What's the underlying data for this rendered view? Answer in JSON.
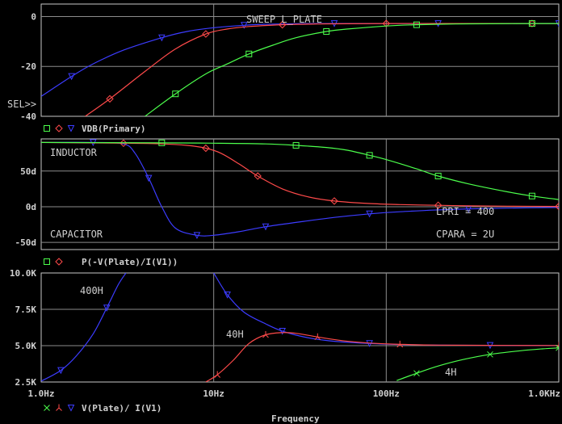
{
  "colors": {
    "bg": "#000000",
    "frame": "#c8c8c8",
    "grid": "#8c8c8c",
    "text": "#d0d0d0",
    "blue": "#3c3cff",
    "red": "#ff4a4a",
    "green": "#4cff4c"
  },
  "chart_data": [
    {
      "type": "line",
      "xscale": "log",
      "xlim": [
        1,
        1000
      ],
      "ylim": [
        -40,
        5
      ],
      "yticks": [
        0,
        -20,
        -40
      ],
      "ytick_labels": [
        "0",
        "-20",
        "-40"
      ],
      "title": "SWEEP L_PLATE",
      "sel_label": "SEL>>",
      "legend": {
        "markers": [
          "square",
          "diamond",
          "triangle-down"
        ],
        "text": "VDB(Primary)"
      },
      "series": [
        {
          "color": "blue",
          "marker": "triangle-down",
          "x": [
            1,
            1.5,
            2,
            3,
            5,
            7,
            10,
            15,
            20,
            30,
            50,
            70,
            100,
            200,
            400,
            700,
            1000
          ],
          "y": [
            -32,
            -24,
            -19,
            -13.5,
            -8.5,
            -6,
            -4.5,
            -3.5,
            -3.1,
            -2.9,
            -2.8,
            -2.8,
            -2.8,
            -2.8,
            -2.8,
            -2.8,
            -2.8
          ]
        },
        {
          "color": "red",
          "marker": "diamond",
          "x": [
            1.8,
            2.5,
            4,
            6,
            9,
            12,
            16,
            25,
            40,
            60,
            100,
            200,
            400,
            700,
            1000
          ],
          "y": [
            -40,
            -33,
            -22,
            -13,
            -7,
            -5,
            -4,
            -3.3,
            -3,
            -2.9,
            -2.8,
            -2.8,
            -2.8,
            -2.8,
            -2.8
          ]
        },
        {
          "color": "green",
          "marker": "square",
          "x": [
            4,
            6,
            9,
            12,
            16,
            22,
            30,
            45,
            60,
            100,
            150,
            250,
            400,
            700,
            1000
          ],
          "y": [
            -40,
            -31,
            -23,
            -19,
            -15,
            -11.5,
            -8.5,
            -6,
            -5,
            -3.8,
            -3.3,
            -3,
            -2.9,
            -2.8,
            -2.8
          ]
        }
      ]
    },
    {
      "type": "line",
      "xscale": "log",
      "xlim": [
        1,
        1000
      ],
      "ylim": [
        -60,
        95
      ],
      "yticks": [
        50,
        0,
        -50
      ],
      "ytick_labels": [
        "50d",
        "0d",
        "-50d"
      ],
      "annotations": {
        "top_left": "INDUCTOR",
        "bottom_left": "CAPACITOR",
        "right1": "LPRI = 400",
        "right2": "CPARA = 2U"
      },
      "legend": {
        "markers": [
          "square",
          "diamond"
        ],
        "text": "P(-V(Plate)/I(V1))"
      },
      "series": [
        {
          "color": "blue",
          "marker": "triangle-down",
          "x": [
            1,
            2,
            3,
            3.5,
            4.2,
            5,
            6,
            8,
            10,
            14,
            20,
            30,
            50,
            80,
            120,
            200,
            300,
            500,
            1000
          ],
          "y": [
            90,
            90,
            88,
            75,
            40,
            0,
            -30,
            -40,
            -40,
            -35,
            -28,
            -22,
            -15,
            -10,
            -7,
            -4.5,
            -3,
            -2,
            -1
          ]
        },
        {
          "color": "red",
          "marker": "diamond",
          "x": [
            1,
            3,
            5,
            7,
            9,
            11,
            14,
            18,
            25,
            35,
            50,
            80,
            120,
            200,
            300,
            500,
            1000
          ],
          "y": [
            90,
            89,
            88,
            86,
            82,
            75,
            60,
            43,
            25,
            14,
            8,
            4.5,
            3,
            2,
            1.2,
            0.8,
            0.4
          ]
        },
        {
          "color": "green",
          "marker": "square",
          "x": [
            1,
            5,
            10,
            20,
            30,
            45,
            60,
            80,
            100,
            150,
            200,
            300,
            500,
            700,
            1000
          ],
          "y": [
            90,
            89.5,
            89,
            88,
            86,
            83,
            79,
            72,
            66,
            53,
            43,
            32,
            21,
            15,
            10
          ]
        }
      ]
    },
    {
      "type": "line",
      "xscale": "log",
      "xlim": [
        1,
        1000
      ],
      "ylim": [
        2500,
        10000
      ],
      "yticks": [
        10000,
        7500,
        5000,
        2500
      ],
      "ytick_labels": [
        "10.0K",
        "7.5K",
        "5.0K",
        "2.5K"
      ],
      "xticks": [
        1,
        10,
        100,
        1000
      ],
      "xtick_labels": [
        "1.0Hz",
        "10Hz",
        "100Hz",
        "1.0KHz"
      ],
      "xlabel": "Frequency",
      "annotations": {
        "blue": "400H",
        "red": "40H",
        "green": "4H"
      },
      "legend": {
        "markers": [
          "x",
          "star",
          "triangle-down"
        ],
        "text": "V(Plate)/ I(V1)"
      },
      "series": [
        {
          "color": "blue",
          "marker": "triangle-down",
          "segments": [
            {
              "x": [
                1,
                1.3,
                1.6,
                2,
                2.4,
                2.8,
                3.1
              ],
              "y": [
                2560,
                3300,
                4300,
                5800,
                7600,
                9200,
                10000
              ]
            },
            {
              "x": [
                10,
                12,
                15,
                20,
                25,
                35,
                50,
                80,
                120,
                200,
                400,
                1000
              ],
              "y": [
                10000,
                8500,
                7300,
                6500,
                6000,
                5550,
                5300,
                5150,
                5080,
                5040,
                5020,
                5010
              ]
            }
          ]
        },
        {
          "color": "red",
          "marker": "star",
          "segments": [
            {
              "x": [
                9,
                10.5,
                13,
                16,
                20,
                25,
                30,
                40,
                55,
                80,
                120,
                200,
                400,
                1000
              ],
              "y": [
                2500,
                3000,
                4000,
                5150,
                5750,
                5900,
                5850,
                5600,
                5350,
                5180,
                5090,
                5040,
                5020,
                5010
              ]
            }
          ]
        },
        {
          "color": "green",
          "marker": "x",
          "segments": [
            {
              "x": [
                115,
                150,
                200,
                280,
                400,
                600,
                800,
                1000
              ],
              "y": [
                2600,
                3100,
                3600,
                4050,
                4400,
                4650,
                4780,
                4850
              ]
            }
          ]
        }
      ]
    }
  ]
}
